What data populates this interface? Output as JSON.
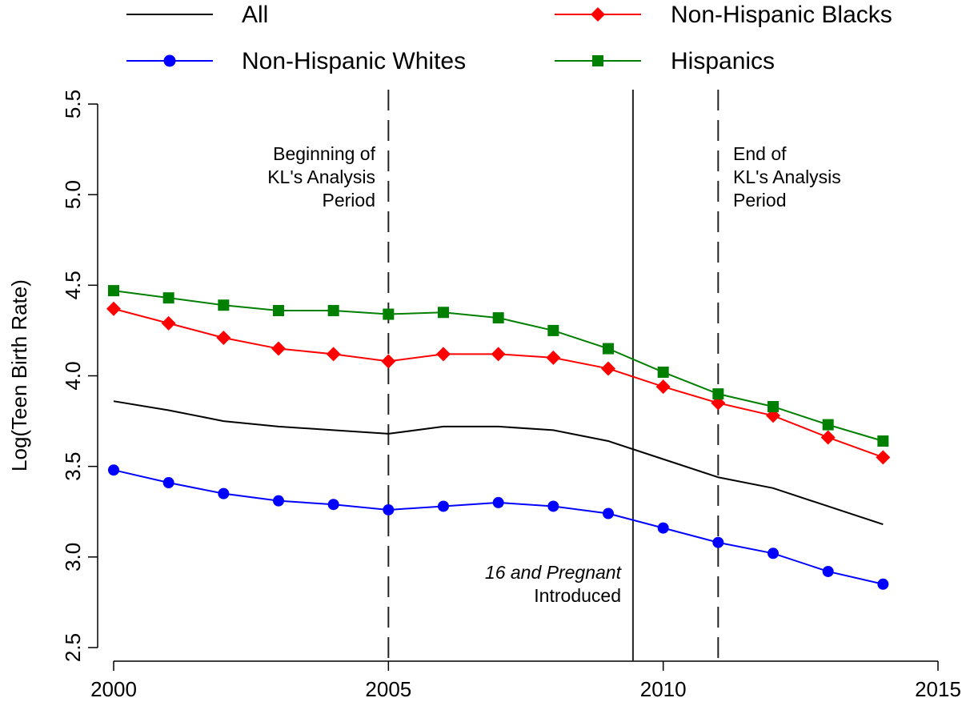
{
  "chart_data": {
    "type": "line",
    "xlabel": "",
    "ylabel": "Log(Teen Birth Rate)",
    "xlim": [
      2000,
      2015
    ],
    "ylim": [
      2.5,
      5.5
    ],
    "x_ticks": [
      2000,
      2005,
      2010,
      2015
    ],
    "y_ticks": [
      "2.5",
      "3.0",
      "3.5",
      "4.0",
      "4.5",
      "5.0",
      "5.5"
    ],
    "grid": false,
    "legend_position": "top, outside plot, two columns",
    "x": [
      2000,
      2001,
      2002,
      2003,
      2004,
      2005,
      2006,
      2007,
      2008,
      2009,
      2010,
      2011,
      2012,
      2013,
      2014
    ],
    "series": [
      {
        "name": "All",
        "color": "#000000",
        "marker": "none",
        "values": [
          3.86,
          3.81,
          3.75,
          3.72,
          3.7,
          3.68,
          3.72,
          3.72,
          3.7,
          3.64,
          3.54,
          3.44,
          3.38,
          3.28,
          3.18
        ]
      },
      {
        "name": "Non-Hispanic Blacks",
        "color": "#ff0000",
        "marker": "diamond",
        "values": [
          4.37,
          4.29,
          4.21,
          4.15,
          4.12,
          4.08,
          4.12,
          4.12,
          4.1,
          4.04,
          3.94,
          3.85,
          3.78,
          3.66,
          3.55
        ]
      },
      {
        "name": "Non-Hispanic Whites",
        "color": "#0000ff",
        "marker": "circle",
        "values": [
          3.48,
          3.41,
          3.35,
          3.31,
          3.29,
          3.26,
          3.28,
          3.3,
          3.28,
          3.24,
          3.16,
          3.08,
          3.02,
          2.92,
          2.85
        ]
      },
      {
        "name": "Hispanics",
        "color": "#008000",
        "marker": "square",
        "values": [
          4.47,
          4.43,
          4.39,
          4.36,
          4.36,
          4.34,
          4.35,
          4.32,
          4.25,
          4.15,
          4.02,
          3.9,
          3.83,
          3.73,
          3.64
        ]
      }
    ],
    "vertical_lines": [
      {
        "x": 2005,
        "style": "dashed",
        "label_lines": [
          "Beginning of",
          "KL's Analysis",
          "Period"
        ]
      },
      {
        "x": 2009.45,
        "style": "solid",
        "label_lines_italic": "16 and Pregnant",
        "label_lines_normal": "Introduced"
      },
      {
        "x": 2011,
        "style": "dashed",
        "label_lines": [
          "End of",
          "KL's Analysis",
          "Period"
        ]
      }
    ]
  }
}
